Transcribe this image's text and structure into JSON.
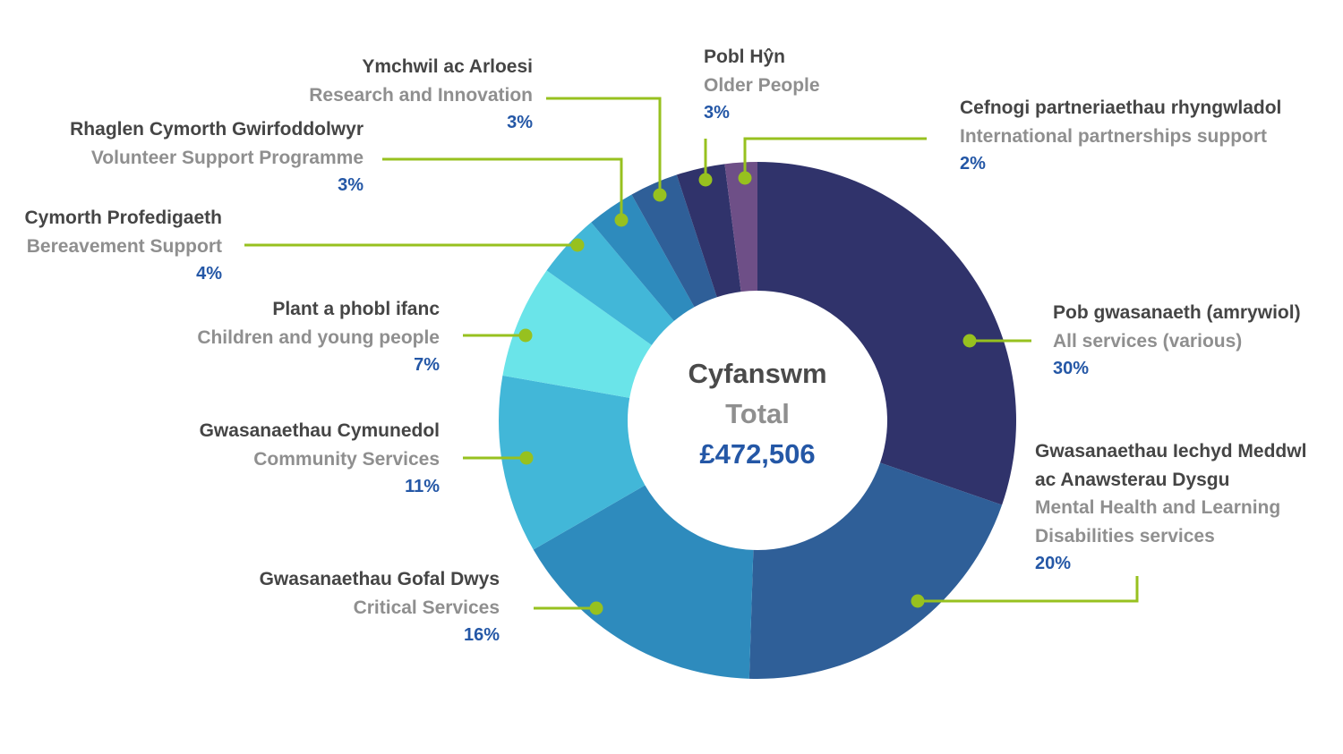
{
  "chart_data": {
    "type": "pie",
    "donut": true,
    "center": {
      "welsh": "Cyfanswm",
      "english": "Total",
      "value": "£472,506"
    },
    "slices": [
      {
        "welsh": "Pob gwasanaeth (amrywiol)",
        "english": "All services (various)",
        "percent_label": "30%",
        "value": 30,
        "color": "#30336b"
      },
      {
        "welsh": "Gwasanaethau Iechyd Meddwl ac Anawsterau Dysgu",
        "english": "Mental Health and Learning Disabilities services",
        "percent_label": "20%",
        "value": 20,
        "color": "#2f5f98"
      },
      {
        "welsh": "Gwasanaethau Gofal Dwys",
        "english": "Critical Services",
        "percent_label": "16%",
        "value": 16,
        "color": "#2e8bbd"
      },
      {
        "welsh": "Gwasanaethau Cymunedol",
        "english": "Community Services",
        "percent_label": "11%",
        "value": 11,
        "color": "#42b7d8"
      },
      {
        "welsh": "Plant a phobl ifanc",
        "english": "Children and young people",
        "percent_label": "7%",
        "value": 7,
        "color": "#6ae4e9"
      },
      {
        "welsh": "Cymorth Profedigaeth",
        "english": "Bereavement Support",
        "percent_label": "4%",
        "value": 4,
        "color": "#42b7d8"
      },
      {
        "welsh": "Rhaglen Cymorth Gwirfoddolwyr",
        "english": "Volunteer Support Programme",
        "percent_label": "3%",
        "value": 3,
        "color": "#2e8bbd"
      },
      {
        "welsh": "Ymchwil ac Arloesi",
        "english": "Research and Innovation",
        "percent_label": "3%",
        "value": 3,
        "color": "#2f5f98"
      },
      {
        "welsh": "Pobl Hŷn",
        "english": "Older People",
        "percent_label": "3%",
        "value": 3,
        "color": "#30336b"
      },
      {
        "welsh": "Cefnogi partneriaethau rhyngwladol",
        "english": "International partnerships support",
        "percent_label": "2%",
        "value": 2,
        "color": "#6e4f87"
      }
    ],
    "leader_color": "#97c11f"
  }
}
